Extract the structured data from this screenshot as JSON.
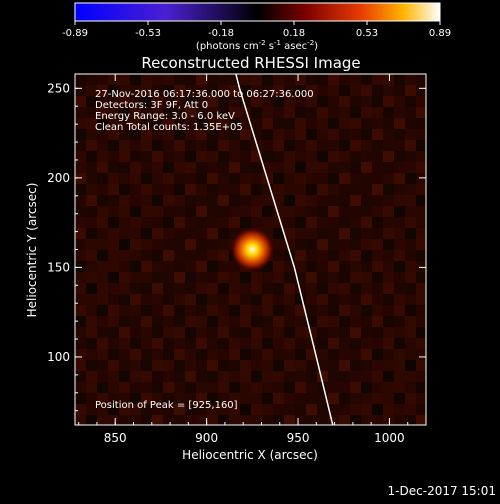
{
  "colorbar": {
    "ticks": [
      "-0.89",
      "-0.53",
      "-0.18",
      "0.18",
      "0.53",
      "0.89"
    ],
    "unit_main": "(photons cm",
    "unit_exp1": "-2",
    "unit_mid": " s",
    "unit_exp2": "-1",
    "unit_tail": " asec",
    "unit_exp3": "-2",
    "unit_close": ")"
  },
  "chart_data": {
    "type": "heatmap",
    "title": "Reconstructed RHESSI Image",
    "xlabel": "Heliocentric X (arcsec)",
    "ylabel": "Heliocentric Y (arcsec)",
    "xlim": [
      828,
      1020
    ],
    "ylim": [
      62,
      258
    ],
    "x_ticks": [
      850,
      900,
      950,
      1000
    ],
    "y_ticks": [
      100,
      150,
      200,
      250
    ],
    "colorscale_range": [
      -0.89,
      0.89
    ],
    "peak": {
      "x": 925,
      "y": 160
    },
    "limb_curve": [
      {
        "x": 969,
        "y": 62
      },
      {
        "x": 960,
        "y": 100
      },
      {
        "x": 948,
        "y": 150
      },
      {
        "x": 933,
        "y": 200
      },
      {
        "x": 918,
        "y": 250
      },
      {
        "x": 916,
        "y": 258
      }
    ],
    "annotations": [
      "27-Nov-2016 06:17:36.000 to 06:27:36.000",
      "Detectors: 3F 9F, Att 0",
      "Energy Range: 3.0 - 6.0 keV",
      "Clean    Total counts: 1.35E+05"
    ],
    "peak_label": "Position of Peak = [925,160]",
    "colors": {
      "low": "#0000ff",
      "zero": "#000000",
      "mid": "#cc2200",
      "high": "#ffffff"
    }
  },
  "footer": {
    "timestamp": "1-Dec-2017 15:01"
  }
}
